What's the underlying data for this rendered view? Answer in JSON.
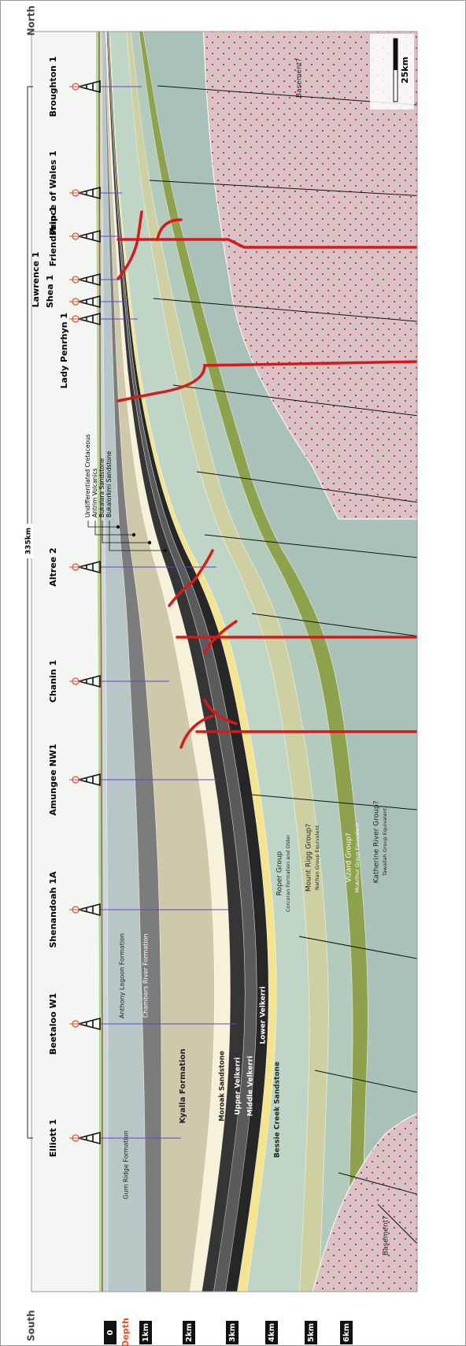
{
  "directions": {
    "north": "North",
    "south": "South"
  },
  "wells": [
    "Broughton 1",
    "Prince of Wales 1",
    "Friendship 1",
    "Lawrence 1",
    "Shea 1",
    "Lady Penrhyn 1",
    "Altree 2",
    "Chanin 1",
    "Amungee NW1",
    "Shenandoah 1A",
    "Beetaloo W1",
    "Elliott 1"
  ],
  "distance_label": "335km",
  "scale_label": "25km",
  "depth_axis": {
    "title": "Depth",
    "labels": [
      "0",
      "1km",
      "2km",
      "3km",
      "4km",
      "5km",
      "6km"
    ]
  },
  "leader_labels": [
    "Undifferentiated Cretaceous",
    "Antrim Volcanics",
    "Bukalara Sandstone",
    "Bukalorkmi Sandstone"
  ],
  "formation_labels": [
    "Gum Ridge Formation",
    "Anthony Lagoon Formation",
    "Chambers River Formation",
    "Kyalla Formation",
    "Moroak Sandstone",
    "Upper Velkerri",
    "Middle Velkerri",
    "Lower Velkerri",
    "Bessie Creek Sandstone",
    "Roper Group",
    "Corcoran Formation and Older",
    "Mount Rigg Group?",
    "Nathan Group Equivalent",
    "Vizard Group?",
    "McArthur Group Equivalent",
    "Katherine River Group?",
    "Tawallah Group Equivalent",
    "Basement?",
    "Basement?"
  ]
}
